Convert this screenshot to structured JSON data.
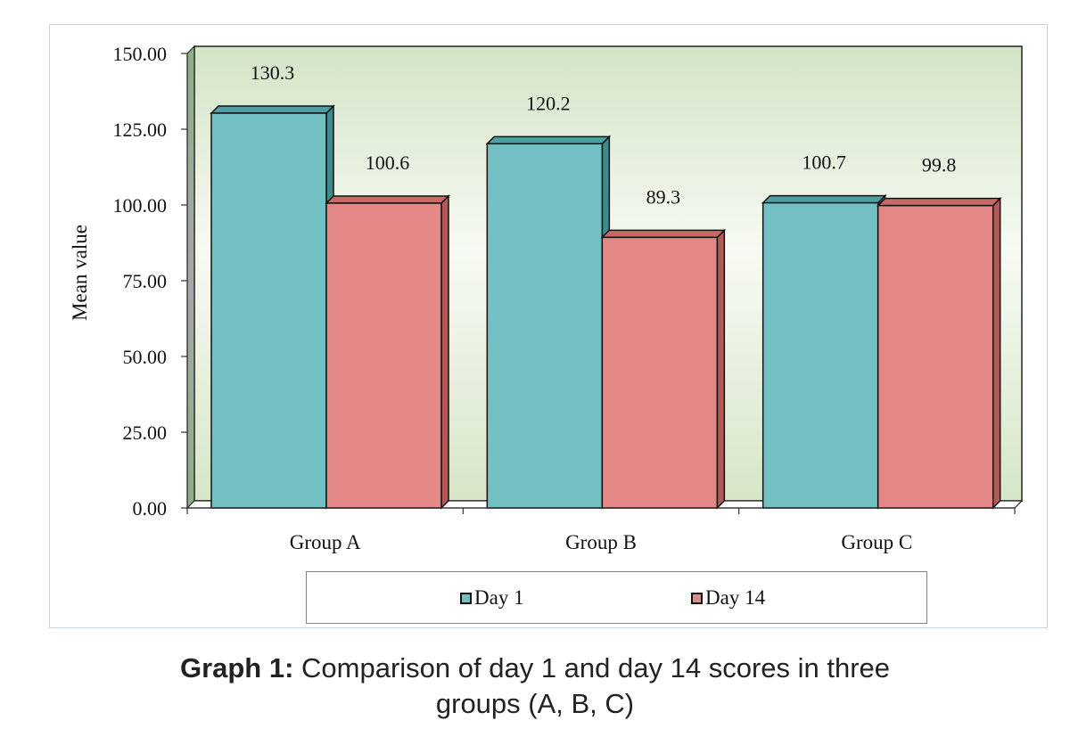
{
  "chart_data": {
    "type": "bar",
    "style": "3d-clustered-column",
    "title": "",
    "xlabel": "",
    "ylabel": "Mean value",
    "ylim": [
      0,
      150
    ],
    "yticks": [
      0,
      25,
      50,
      75,
      100,
      125,
      150
    ],
    "ytick_labels": [
      "0.00",
      "25.00",
      "50.00",
      "75.00",
      "100.00",
      "125.00",
      "150.00"
    ],
    "categories": [
      "Group A",
      "Group B",
      "Group C"
    ],
    "series": [
      {
        "name": "Day 1",
        "values": [
          130.3,
          120.2,
          100.7
        ],
        "labels": [
          "130.3",
          "120.2",
          "100.7"
        ],
        "color": "#72c0c4"
      },
      {
        "name": "Day 14",
        "values": [
          100.6,
          89.3,
          99.8
        ],
        "labels": [
          "100.6",
          "89.3",
          "99.8"
        ],
        "color": "#e38886"
      }
    ],
    "grid": false,
    "legend_position": "bottom"
  },
  "caption": {
    "label": "Graph 1:",
    "text": " Comparison of day 1 and day 14 scores in three",
    "line2": "groups (A, B, C)"
  }
}
